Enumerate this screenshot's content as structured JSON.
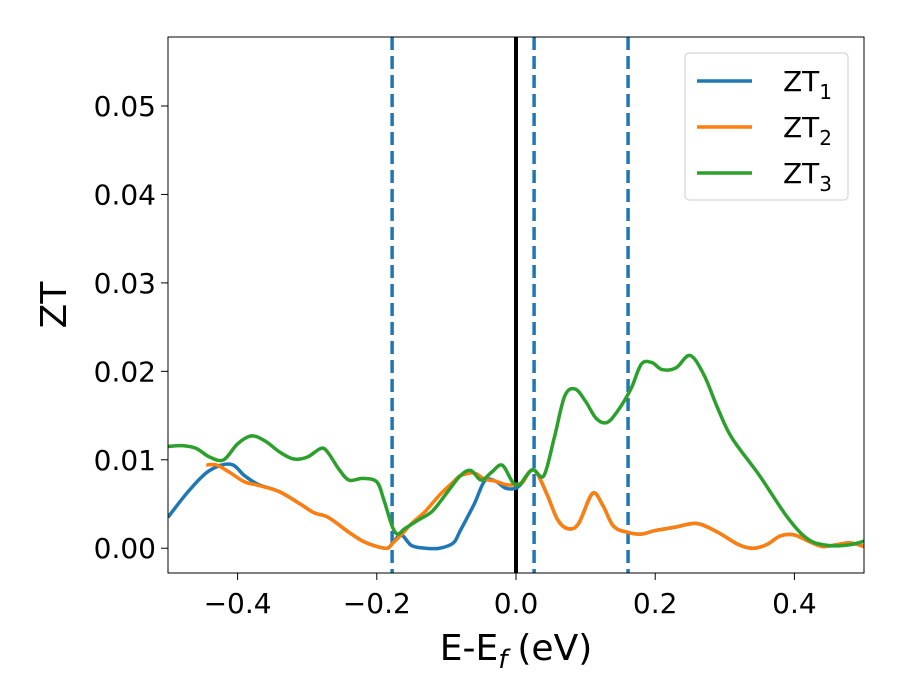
{
  "chart_data": {
    "type": "line",
    "title": "",
    "xlabel": "E-E",
    "xlabel_sub": "f",
    "xlabel_unit": "(eV)",
    "ylabel": "ZT",
    "xlim": [
      -0.5,
      0.5
    ],
    "ylim": [
      -0.0028,
      0.0578
    ],
    "xticks": [
      -0.4,
      -0.2,
      0.0,
      0.2,
      0.4
    ],
    "xtick_labels": [
      "−0.4",
      "−0.2",
      "0.0",
      "0.2",
      "0.4"
    ],
    "yticks": [
      0.0,
      0.01,
      0.02,
      0.03,
      0.04,
      0.05
    ],
    "ytick_labels": [
      "0.00",
      "0.01",
      "0.02",
      "0.03",
      "0.04",
      "0.05"
    ],
    "grid": false,
    "legend_position": "top-right",
    "vlines": [
      {
        "x": 0.0,
        "style": "solid",
        "color": "#000000"
      },
      {
        "x": -0.178,
        "style": "dashed",
        "color": "#1f77b4"
      },
      {
        "x": 0.026,
        "style": "dashed",
        "color": "#1f77b4"
      },
      {
        "x": 0.161,
        "style": "dashed",
        "color": "#1f77b4"
      }
    ],
    "series": [
      {
        "name": "ZT",
        "name_sub": "1",
        "color": "#1f77b4",
        "x": [
          -0.5,
          -0.47,
          -0.44,
          -0.41,
          -0.39,
          -0.37,
          -0.34,
          -0.31,
          -0.29,
          -0.27,
          -0.24,
          -0.22,
          -0.2,
          -0.185,
          -0.178,
          -0.165,
          -0.15,
          -0.13,
          -0.11,
          -0.09,
          -0.08,
          -0.06,
          -0.045,
          -0.03,
          -0.015,
          0.0,
          0.01,
          0.02,
          0.03,
          0.045,
          0.06,
          0.075,
          0.09,
          0.11,
          0.125,
          0.14,
          0.16,
          0.18,
          0.2,
          0.23,
          0.26,
          0.29,
          0.32,
          0.34,
          0.36,
          0.38,
          0.4,
          0.42,
          0.44,
          0.46,
          0.48,
          0.5
        ],
        "y": [
          0.0035,
          0.0065,
          0.0088,
          0.0095,
          0.0082,
          0.0072,
          0.0064,
          0.005,
          0.004,
          0.0035,
          0.0018,
          0.0008,
          0.0002,
          0.0,
          0.0005,
          0.0015,
          0.0003,
          0.0,
          0.0,
          0.0006,
          0.002,
          0.005,
          0.0076,
          0.0076,
          0.0068,
          0.0068,
          0.0075,
          0.0087,
          0.0085,
          0.006,
          0.0032,
          0.0022,
          0.0028,
          0.0062,
          0.0048,
          0.0025,
          0.0018,
          0.0016,
          0.002,
          0.0024,
          0.0028,
          0.0018,
          0.0004,
          0.0,
          0.0004,
          0.0014,
          0.0015,
          0.0008,
          0.0002,
          0.0004,
          0.0006,
          0.0002
        ]
      },
      {
        "name": "ZT",
        "name_sub": "2",
        "color": "#ff7f0e",
        "x": [
          -0.445,
          -0.43,
          -0.41,
          -0.39,
          -0.37,
          -0.34,
          -0.31,
          -0.29,
          -0.27,
          -0.24,
          -0.22,
          -0.2,
          -0.185,
          -0.178,
          -0.165,
          -0.15,
          -0.13,
          -0.11,
          -0.09,
          -0.08,
          -0.06,
          -0.045,
          -0.03,
          -0.015,
          0.0,
          0.01,
          0.02,
          0.03,
          0.045,
          0.06,
          0.075,
          0.09,
          0.11,
          0.125,
          0.14,
          0.16,
          0.18,
          0.2,
          0.23,
          0.26,
          0.29,
          0.32,
          0.34,
          0.36,
          0.38,
          0.4,
          0.42,
          0.44,
          0.46,
          0.48,
          0.5
        ],
        "y": [
          0.0094,
          0.0094,
          0.0085,
          0.0075,
          0.0071,
          0.0064,
          0.005,
          0.004,
          0.0035,
          0.0018,
          0.0008,
          0.0002,
          0.0,
          0.0005,
          0.0015,
          0.0028,
          0.0042,
          0.006,
          0.0075,
          0.0082,
          0.0085,
          0.0078,
          0.0076,
          0.0072,
          0.0072,
          0.0075,
          0.0087,
          0.0085,
          0.006,
          0.0032,
          0.0022,
          0.0028,
          0.0062,
          0.0048,
          0.0025,
          0.0018,
          0.0016,
          0.002,
          0.0024,
          0.0028,
          0.0018,
          0.0004,
          0.0,
          0.0004,
          0.0014,
          0.0015,
          0.0008,
          0.0002,
          0.0004,
          0.0006,
          0.0002
        ]
      },
      {
        "name": "ZT",
        "name_sub": "3",
        "color": "#2ca02c",
        "x": [
          -0.5,
          -0.48,
          -0.46,
          -0.44,
          -0.42,
          -0.4,
          -0.38,
          -0.36,
          -0.34,
          -0.32,
          -0.3,
          -0.28,
          -0.27,
          -0.255,
          -0.24,
          -0.22,
          -0.2,
          -0.19,
          -0.178,
          -0.17,
          -0.16,
          -0.14,
          -0.12,
          -0.1,
          -0.08,
          -0.065,
          -0.05,
          -0.035,
          -0.02,
          -0.005,
          0.005,
          0.015,
          0.025,
          0.04,
          0.055,
          0.07,
          0.085,
          0.1,
          0.115,
          0.13,
          0.145,
          0.165,
          0.18,
          0.195,
          0.21,
          0.23,
          0.25,
          0.27,
          0.29,
          0.31,
          0.35,
          0.39,
          0.42,
          0.45,
          0.48,
          0.5
        ],
        "y": [
          0.0115,
          0.0116,
          0.0113,
          0.0103,
          0.01,
          0.0118,
          0.0127,
          0.0121,
          0.0109,
          0.0101,
          0.0103,
          0.0113,
          0.0108,
          0.009,
          0.0077,
          0.0079,
          0.0075,
          0.0055,
          0.0025,
          0.0016,
          0.0022,
          0.0032,
          0.0042,
          0.0062,
          0.0082,
          0.0088,
          0.0077,
          0.0086,
          0.0094,
          0.0075,
          0.0072,
          0.0082,
          0.0089,
          0.0082,
          0.0125,
          0.0172,
          0.018,
          0.0166,
          0.0147,
          0.0142,
          0.0154,
          0.018,
          0.0208,
          0.021,
          0.0202,
          0.0204,
          0.0218,
          0.0196,
          0.0158,
          0.0125,
          0.0082,
          0.0035,
          0.001,
          0.0003,
          0.0004,
          0.0008
        ]
      }
    ]
  }
}
